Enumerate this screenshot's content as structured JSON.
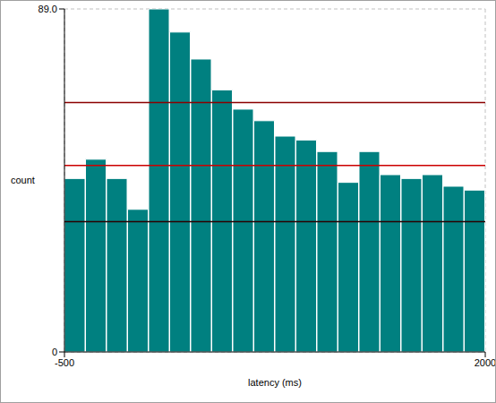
{
  "chart_data": {
    "type": "histogram",
    "x_label": "latency (ms)",
    "y_label": "count",
    "bins": [
      -500,
      -375,
      -250,
      -125,
      0,
      125,
      250,
      375,
      500,
      625,
      750,
      875,
      1000,
      1125,
      1250,
      1375,
      1500,
      1625,
      1750,
      1875,
      2000
    ],
    "values": [
      45,
      50,
      45,
      37,
      89,
      83,
      76,
      68,
      63,
      60,
      56,
      55,
      52,
      44,
      52,
      46,
      45,
      46,
      43,
      42
    ],
    "color": "#008080",
    "xlim": [
      -500,
      2000
    ],
    "xticks": [
      -500,
      2000
    ],
    "ylim": [
      0,
      89
    ],
    "yticks": [
      0,
      {
        "value": 89,
        "label": "89.0"
      }
    ],
    "grid": true,
    "reference_lines": [
      {
        "value": 64.7,
        "color": "#8b0000"
      },
      {
        "value": 48.4,
        "color": "#cc0000"
      },
      {
        "value": 33.8,
        "color": "#2a0000"
      }
    ]
  }
}
